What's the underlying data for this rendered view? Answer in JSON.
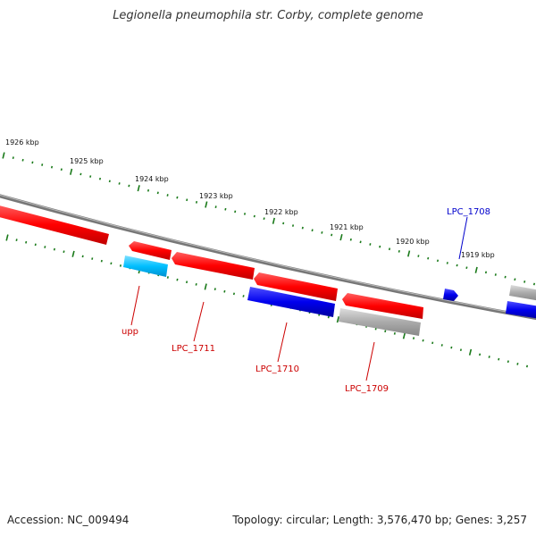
{
  "title": "Legionella pneumophila str. Corby, complete genome",
  "footer": {
    "accession": "Accession: NC_009494",
    "summary": "Topology: circular; Length: 3,576,470 bp; Genes: 3,257"
  },
  "ticks": [
    "1926 kbp",
    "1925 kbp",
    "1924 kbp",
    "1923 kbp",
    "1922 kbp",
    "1921 kbp",
    "1920 kbp",
    "1919 kbp"
  ],
  "gene_labels": [
    {
      "name": "upp",
      "color": "#cc0000"
    },
    {
      "name": "LPC_1711",
      "color": "#cc0000"
    },
    {
      "name": "LPC_1710",
      "color": "#cc0000"
    },
    {
      "name": "LPC_1709",
      "color": "#cc0000"
    },
    {
      "name": "LPC_1708",
      "color": "#0000cc"
    }
  ],
  "colors": {
    "forward_cds": "#ff0000",
    "reverse_blue": "#0000ee",
    "rna_cyan": "#00bfff",
    "gray_feature": "#aaaaaa",
    "backbone": "#777777",
    "tick_green": "#1a7a1a"
  }
}
